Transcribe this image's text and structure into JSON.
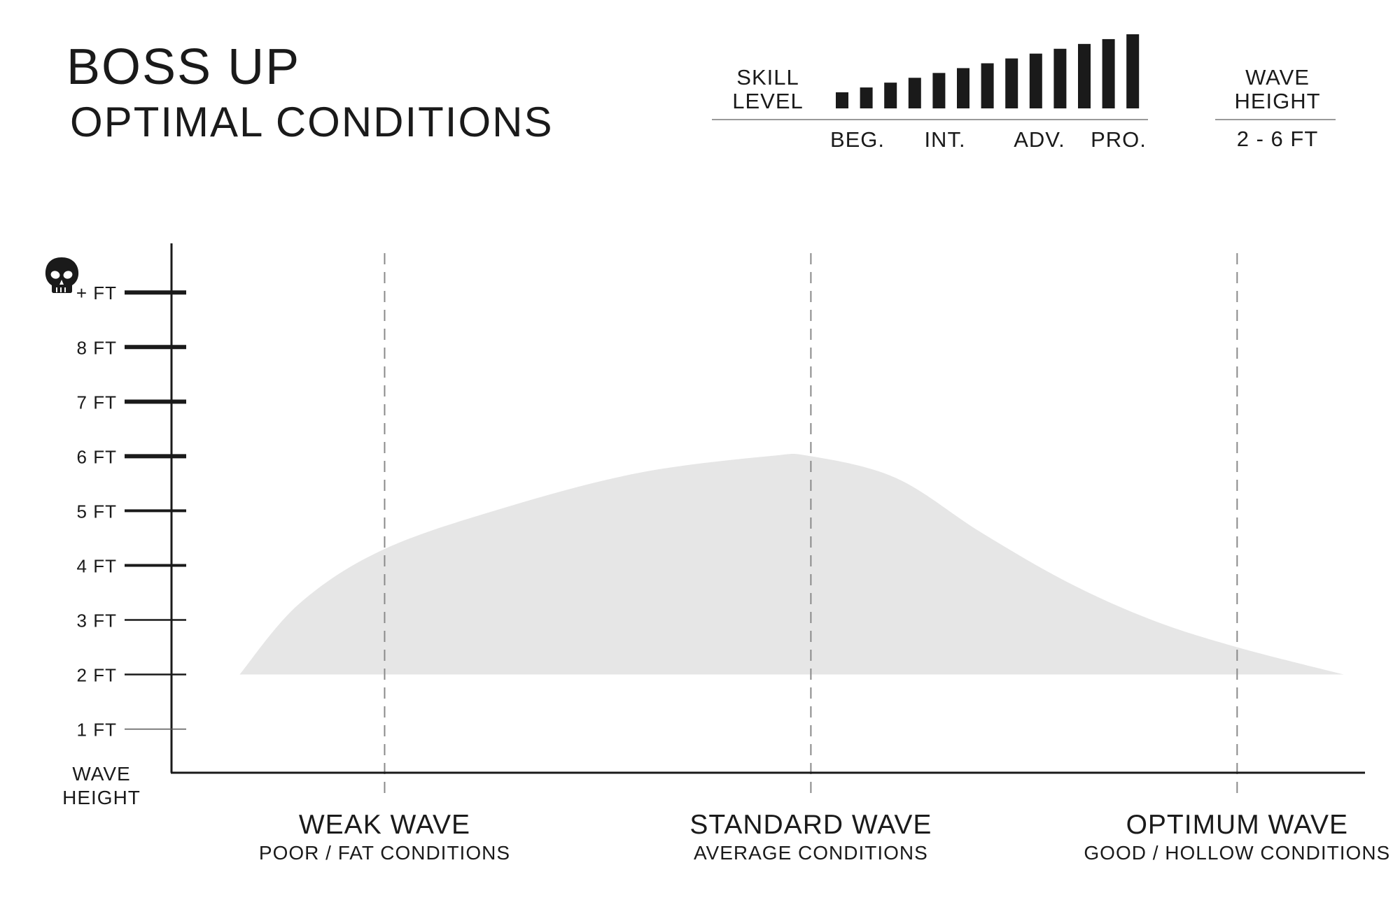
{
  "header": {
    "title": "BOSS UP",
    "subtitle": "OPTIMAL CONDITIONS"
  },
  "skill": {
    "label_line1": "SKILL",
    "label_line2": "LEVEL",
    "bar_count": 13,
    "bar_levels": [
      1,
      2,
      3,
      4,
      5,
      6,
      7,
      8,
      9,
      10,
      11,
      12,
      13
    ],
    "ticks": [
      "BEG.",
      "INT.",
      "ADV.",
      "PRO."
    ]
  },
  "wave_height_box": {
    "label_line1": "WAVE",
    "label_line2": "HEIGHT",
    "value": "2 - 6 FT"
  },
  "colors": {
    "ink": "#1a1a1a",
    "area_fill": "#e6e6e6",
    "dashed": "#8a8a8a"
  },
  "chart_data": {
    "type": "area",
    "y_unit": "FT",
    "ylim": [
      0.2,
      9.9
    ],
    "y_ticks": [
      {
        "value": 1,
        "label": "1 FT"
      },
      {
        "value": 2,
        "label": "2 FT"
      },
      {
        "value": 3,
        "label": "3 FT"
      },
      {
        "value": 4,
        "label": "4 FT"
      },
      {
        "value": 5,
        "label": "5 FT"
      },
      {
        "value": 6,
        "label": "6 FT"
      },
      {
        "value": 7,
        "label": "7 FT"
      },
      {
        "value": 8,
        "label": "8 FT"
      },
      {
        "value": 9,
        "label": "+ FT",
        "icon": "skull-icon"
      }
    ],
    "y_axis_label_line1": "WAVE",
    "y_axis_label_line2": "HEIGHT",
    "xlim": [
      0,
      2.8
    ],
    "x_categories": [
      {
        "position": 0.5,
        "label": "WEAK WAVE",
        "sublabel": "POOR / FAT CONDITIONS"
      },
      {
        "position": 1.5,
        "label": "STANDARD WAVE",
        "sublabel": "AVERAGE CONDITIONS"
      },
      {
        "position": 2.5,
        "label": "OPTIMUM WAVE",
        "sublabel": "GOOD / HOLLOW CONDITIONS"
      }
    ],
    "range_area": {
      "lower": 2,
      "upper_curve": [
        {
          "x": 0.16,
          "y": 2.0
        },
        {
          "x": 0.3,
          "y": 3.3
        },
        {
          "x": 0.5,
          "y": 4.3
        },
        {
          "x": 0.8,
          "y": 5.1
        },
        {
          "x": 1.1,
          "y": 5.7
        },
        {
          "x": 1.4,
          "y": 6.0
        },
        {
          "x": 1.5,
          "y": 6.0
        },
        {
          "x": 1.7,
          "y": 5.6
        },
        {
          "x": 1.9,
          "y": 4.6
        },
        {
          "x": 2.1,
          "y": 3.7
        },
        {
          "x": 2.3,
          "y": 3.0
        },
        {
          "x": 2.5,
          "y": 2.5
        },
        {
          "x": 2.75,
          "y": 2.0
        }
      ]
    },
    "grid": false
  }
}
